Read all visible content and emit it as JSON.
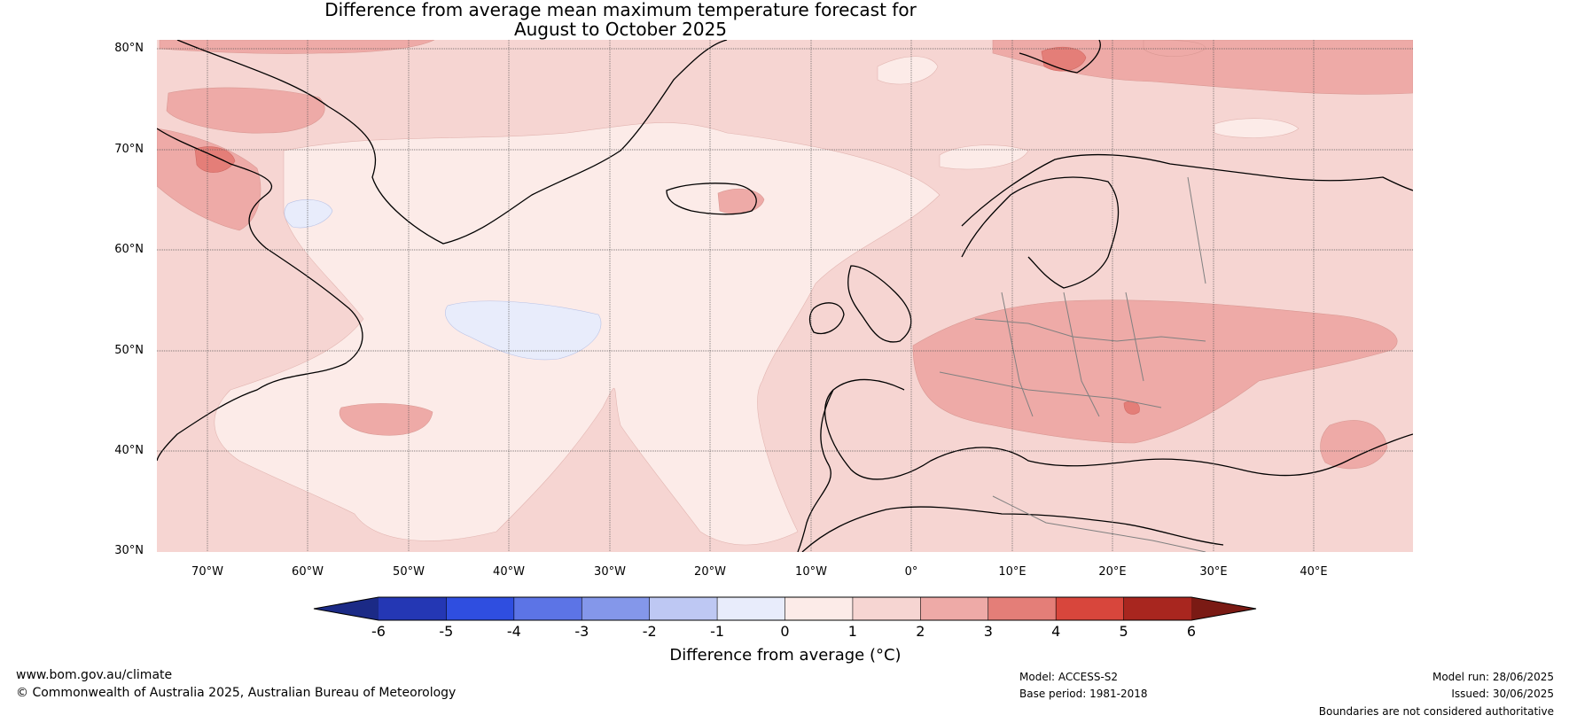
{
  "title_line1": "Difference from average mean maximum temperature forecast for",
  "title_line2": "August to October 2025",
  "lat_labels": [
    "80°N",
    "70°N",
    "60°N",
    "50°N",
    "40°N",
    "30°N"
  ],
  "lon_labels": [
    "70°W",
    "60°W",
    "50°W",
    "40°W",
    "30°W",
    "20°W",
    "10°W",
    "0°",
    "10°E",
    "20°E",
    "30°E",
    "40°E"
  ],
  "colorbar": {
    "label": "Difference from average (°C)",
    "ticks": [
      "-6",
      "-5",
      "-4",
      "-3",
      "-2",
      "-1",
      "0",
      "1",
      "2",
      "3",
      "4",
      "5",
      "6"
    ],
    "colors": [
      "#1b2a86",
      "#2437b4",
      "#2f4ee0",
      "#5c74e6",
      "#8497ea",
      "#bec8f3",
      "#e8ecfb",
      "#fcebe8",
      "#f6d5d2",
      "#eeaaa7",
      "#e47e78",
      "#d8463c",
      "#a8261f",
      "#7a1a14"
    ]
  },
  "footer": {
    "website": "www.bom.gov.au/climate",
    "copyright": "© Commonwealth of Australia 2025, Australian Bureau of Meteorology",
    "model": "Model: ACCESS-S2",
    "base_period": "Base period: 1981-2018",
    "model_run": "Model run: 28/06/2025",
    "issued": "Issued: 30/06/2025",
    "disclaimer": "Boundaries are not considered authoritative"
  }
}
